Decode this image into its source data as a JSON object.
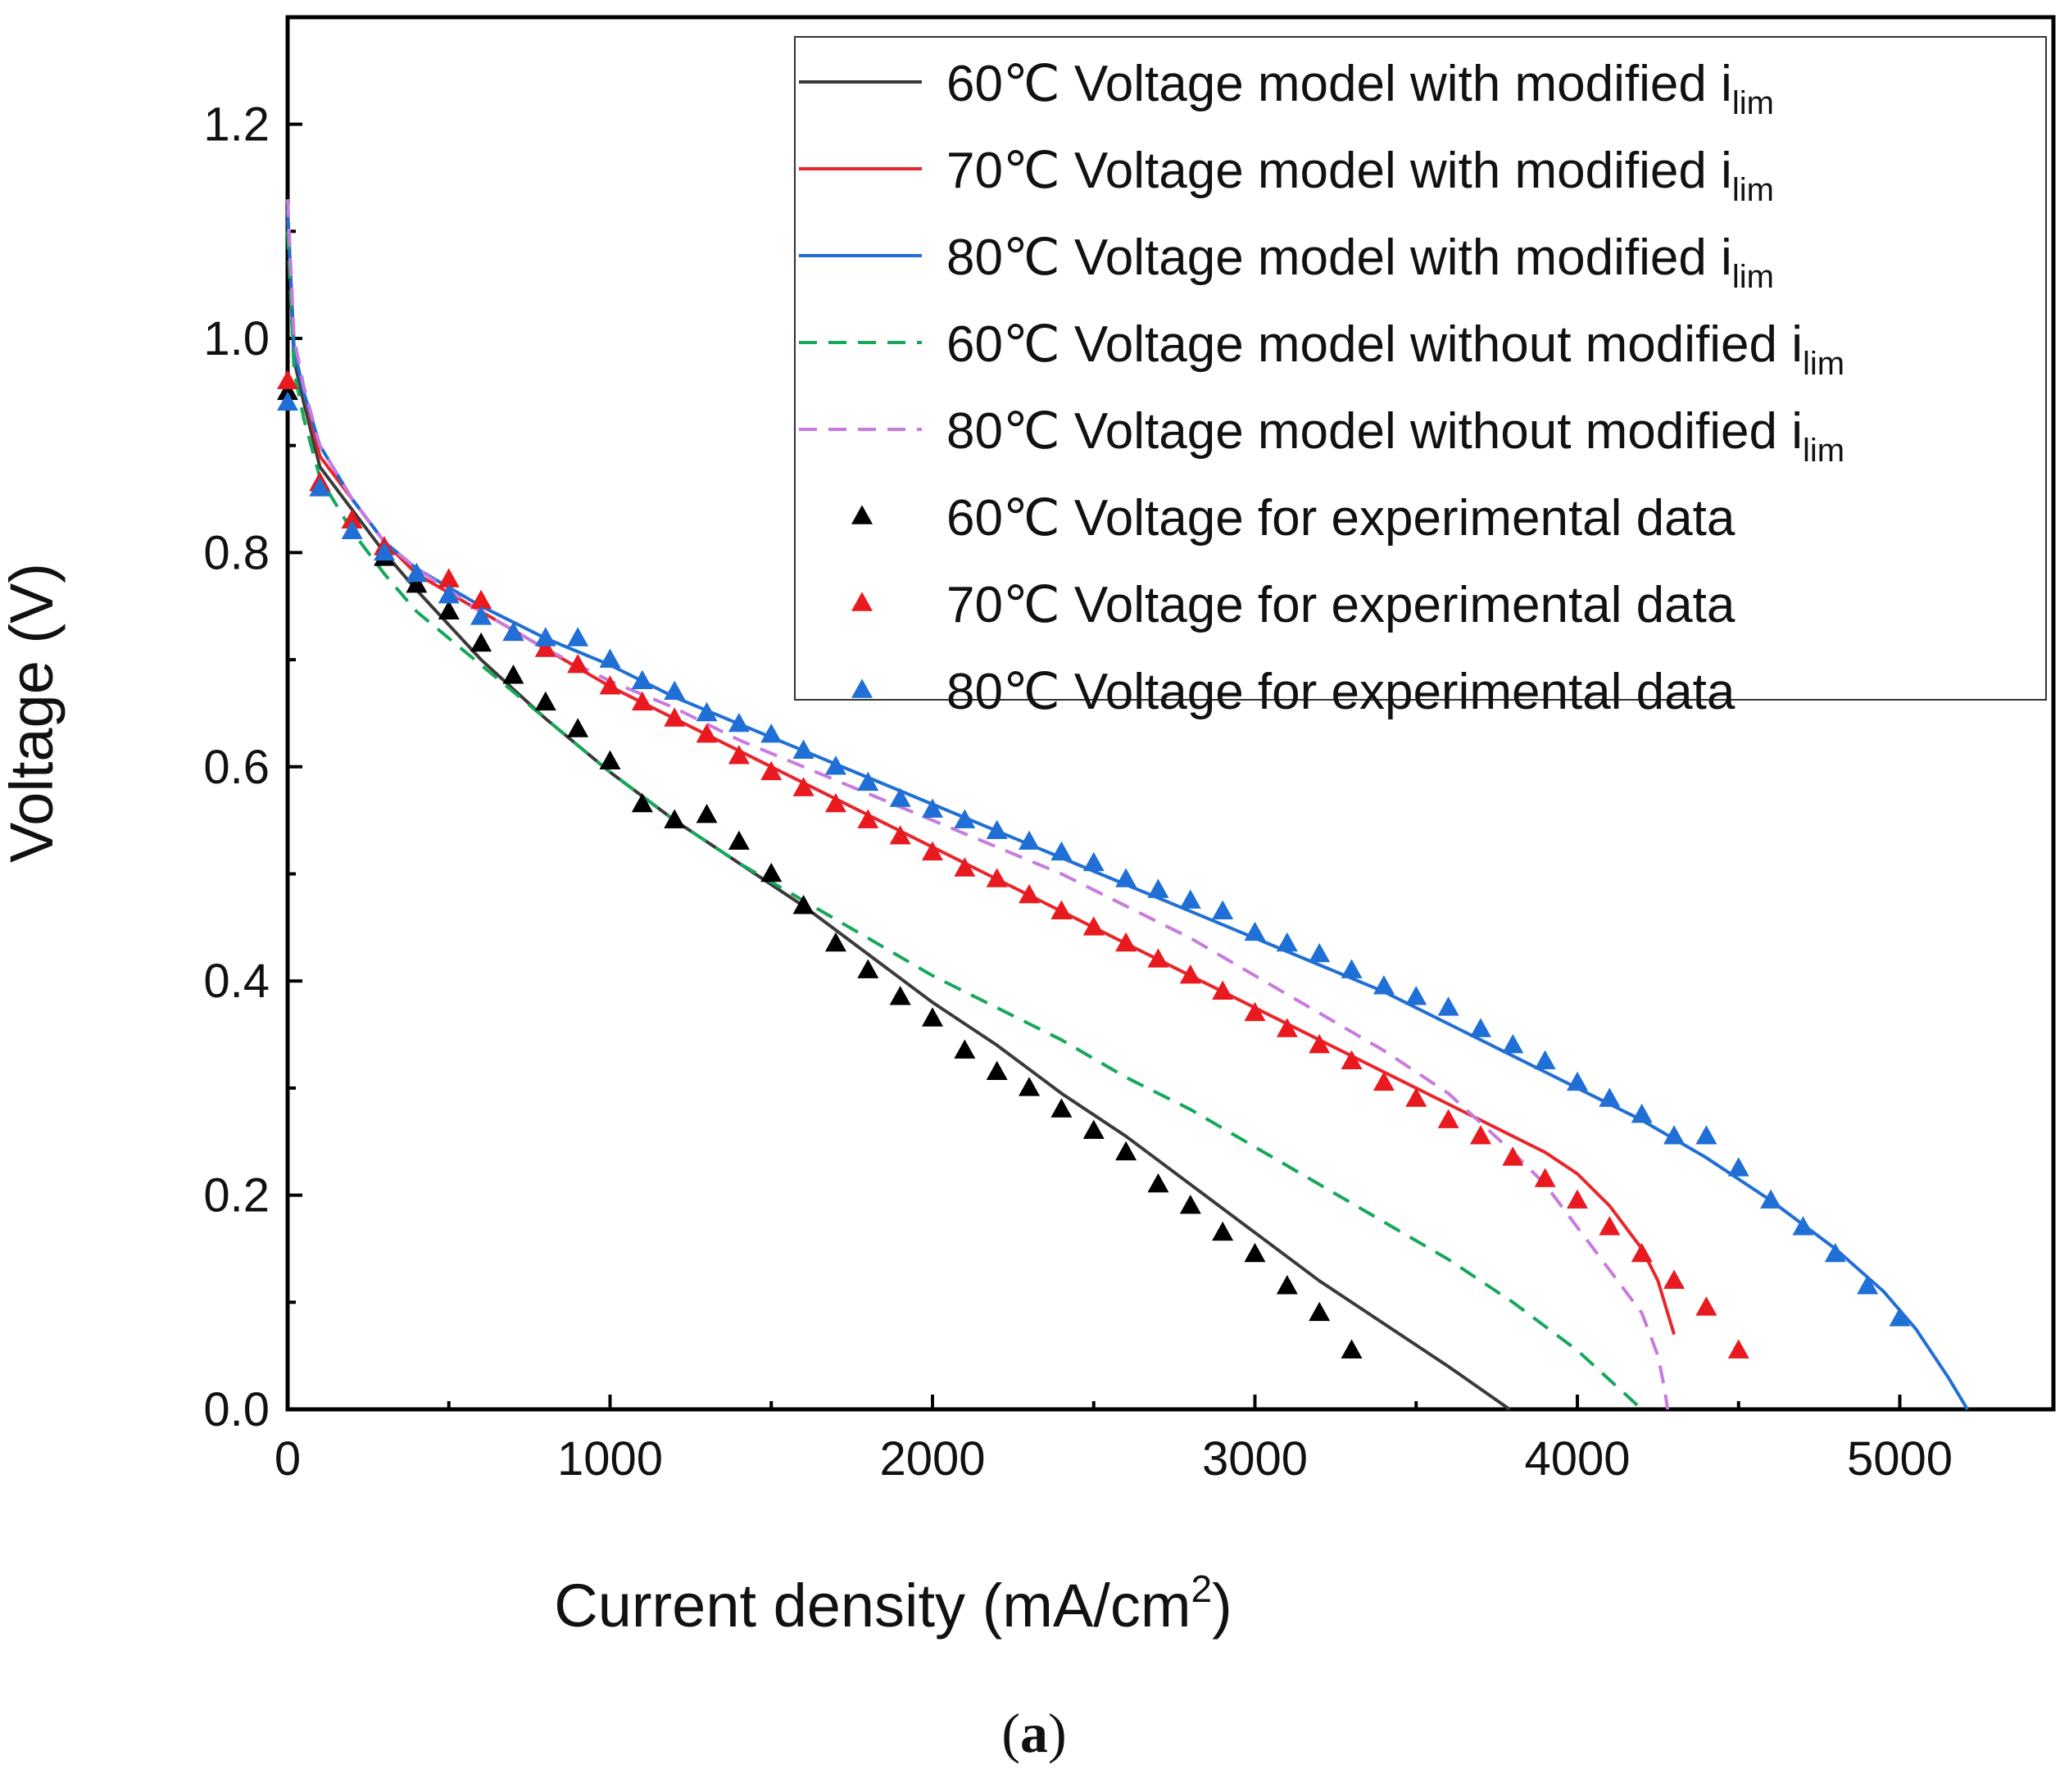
{
  "chart_data": {
    "type": "line",
    "caption": "a",
    "xlabel": "Current density (mA/cm",
    "xlabel_sup": "2",
    "xlabel_end": ")",
    "ylabel": "Voltage (V)",
    "xlim": [
      0,
      5500
    ],
    "ylim": [
      0,
      1.3
    ],
    "x_ticks": [
      0,
      1000,
      2000,
      3000,
      4000,
      5000
    ],
    "x_tick_labels": [
      "0",
      "1000",
      "2000",
      "3000",
      "4000",
      "5000"
    ],
    "y_ticks": [
      0,
      0.2,
      0.4,
      0.6,
      0.8,
      1.0,
      1.2
    ],
    "y_tick_labels": [
      "0.0",
      "0.2",
      "0.4",
      "0.6",
      "0.8",
      "1.0",
      "1.2"
    ],
    "legend_position": "top-right",
    "series": [
      {
        "name": "60℃ Voltage model with modified i",
        "subscript": "lim",
        "kind": "line",
        "dash": "solid",
        "color": "#3a3a3a",
        "x": [
          0,
          20,
          50,
          100,
          200,
          300,
          400,
          600,
          800,
          1000,
          1200,
          1400,
          1600,
          1800,
          2000,
          2200,
          2400,
          2600,
          2800,
          3000,
          3200,
          3400,
          3600,
          3790
        ],
        "y": [
          1.11,
          0.98,
          0.94,
          0.88,
          0.84,
          0.8,
          0.765,
          0.7,
          0.645,
          0.595,
          0.55,
          0.51,
          0.47,
          0.425,
          0.38,
          0.34,
          0.295,
          0.255,
          0.21,
          0.165,
          0.12,
          0.08,
          0.04,
          0.0
        ]
      },
      {
        "name": "70℃ Voltage model with modified i",
        "subscript": "lim",
        "kind": "line",
        "dash": "solid",
        "color": "#e8262b",
        "x": [
          0,
          20,
          50,
          100,
          200,
          300,
          400,
          600,
          800,
          1000,
          1200,
          1400,
          1600,
          1800,
          2000,
          2200,
          2400,
          2600,
          2800,
          3000,
          3200,
          3400,
          3600,
          3800,
          3900,
          4000,
          4100,
          4200,
          4250,
          4280,
          4300
        ],
        "y": [
          1.12,
          0.99,
          0.95,
          0.89,
          0.85,
          0.81,
          0.78,
          0.745,
          0.71,
          0.675,
          0.645,
          0.615,
          0.585,
          0.555,
          0.525,
          0.495,
          0.465,
          0.435,
          0.405,
          0.375,
          0.345,
          0.315,
          0.285,
          0.255,
          0.24,
          0.22,
          0.19,
          0.15,
          0.12,
          0.09,
          0.07
        ]
      },
      {
        "name": "80℃ Voltage model with modified i",
        "subscript": "lim",
        "kind": "line",
        "dash": "solid",
        "color": "#1f6fd6",
        "x": [
          0,
          20,
          50,
          100,
          200,
          300,
          400,
          600,
          800,
          1000,
          1200,
          1400,
          1600,
          1800,
          2000,
          2200,
          2400,
          2600,
          2800,
          3000,
          3200,
          3400,
          3600,
          3800,
          4000,
          4200,
          4400,
          4600,
          4800,
          4950,
          5050,
          5150,
          5210
        ],
        "y": [
          1.12,
          0.99,
          0.95,
          0.9,
          0.85,
          0.81,
          0.785,
          0.75,
          0.72,
          0.695,
          0.665,
          0.64,
          0.615,
          0.59,
          0.565,
          0.54,
          0.515,
          0.49,
          0.465,
          0.44,
          0.415,
          0.39,
          0.36,
          0.33,
          0.3,
          0.27,
          0.235,
          0.195,
          0.15,
          0.11,
          0.075,
          0.03,
          0.0
        ]
      },
      {
        "name": "60℃ Voltage model without modified i",
        "subscript": "lim",
        "kind": "line",
        "dash": "dashed",
        "color": "#16a85a",
        "x": [
          0,
          20,
          50,
          100,
          200,
          300,
          400,
          600,
          800,
          1000,
          1200,
          1400,
          1600,
          1800,
          2000,
          2200,
          2400,
          2600,
          2800,
          3000,
          3200,
          3400,
          3600,
          3800,
          4000,
          4200
        ],
        "y": [
          1.1,
          0.97,
          0.925,
          0.87,
          0.82,
          0.78,
          0.745,
          0.695,
          0.645,
          0.595,
          0.55,
          0.51,
          0.475,
          0.44,
          0.405,
          0.375,
          0.345,
          0.31,
          0.28,
          0.245,
          0.21,
          0.175,
          0.14,
          0.1,
          0.055,
          0.0
        ]
      },
      {
        "name": "80℃ Voltage model without modified i",
        "subscript": "lim",
        "kind": "line",
        "dash": "dashed",
        "color": "#c87ae0",
        "x": [
          0,
          20,
          50,
          100,
          200,
          300,
          400,
          600,
          800,
          1000,
          1200,
          1400,
          1600,
          1800,
          2000,
          2200,
          2400,
          2600,
          2800,
          3000,
          3200,
          3400,
          3600,
          3800,
          3900,
          4000,
          4100,
          4200,
          4250,
          4270,
          4280
        ],
        "y": [
          1.13,
          1.0,
          0.955,
          0.9,
          0.85,
          0.81,
          0.785,
          0.745,
          0.71,
          0.68,
          0.655,
          0.625,
          0.6,
          0.575,
          0.55,
          0.525,
          0.5,
          0.47,
          0.44,
          0.405,
          0.37,
          0.335,
          0.295,
          0.24,
          0.21,
          0.17,
          0.13,
          0.09,
          0.05,
          0.02,
          0.0
        ]
      },
      {
        "name": "60℃ Voltage for experimental data",
        "kind": "marker",
        "color": "#000000",
        "x": [
          0,
          100,
          200,
          300,
          400,
          500,
          600,
          700,
          800,
          900,
          1000,
          1100,
          1200,
          1300,
          1400,
          1500,
          1600,
          1700,
          1800,
          1900,
          2000,
          2100,
          2200,
          2300,
          2400,
          2500,
          2600,
          2700,
          2800,
          2900,
          3000,
          3100,
          3200,
          3300
        ],
        "y": [
          0.95,
          0.865,
          0.83,
          0.795,
          0.77,
          0.745,
          0.715,
          0.685,
          0.66,
          0.635,
          0.605,
          0.565,
          0.55,
          0.555,
          0.53,
          0.5,
          0.47,
          0.435,
          0.41,
          0.385,
          0.365,
          0.335,
          0.315,
          0.3,
          0.28,
          0.26,
          0.24,
          0.21,
          0.19,
          0.165,
          0.145,
          0.115,
          0.09,
          0.055
        ]
      },
      {
        "name": "70℃ Voltage for experimental data",
        "kind": "marker",
        "color": "#e8191f",
        "x": [
          0,
          100,
          200,
          300,
          400,
          500,
          600,
          700,
          800,
          900,
          1000,
          1100,
          1200,
          1300,
          1400,
          1500,
          1600,
          1700,
          1800,
          1900,
          2000,
          2100,
          2200,
          2300,
          2400,
          2500,
          2600,
          2700,
          2800,
          2900,
          3000,
          3100,
          3200,
          3300,
          3400,
          3500,
          3600,
          3700,
          3800,
          3900,
          4000,
          4100,
          4200,
          4300,
          4400,
          4500
        ],
        "y": [
          0.96,
          0.865,
          0.83,
          0.805,
          0.78,
          0.775,
          0.755,
          0.725,
          0.71,
          0.695,
          0.675,
          0.66,
          0.645,
          0.63,
          0.61,
          0.595,
          0.58,
          0.565,
          0.55,
          0.535,
          0.52,
          0.505,
          0.495,
          0.48,
          0.465,
          0.45,
          0.435,
          0.42,
          0.405,
          0.39,
          0.37,
          0.355,
          0.34,
          0.325,
          0.305,
          0.29,
          0.27,
          0.255,
          0.235,
          0.215,
          0.195,
          0.17,
          0.145,
          0.12,
          0.095,
          0.055
        ]
      },
      {
        "name": "80℃ Voltage for experimental data",
        "kind": "marker",
        "color": "#1f6fd6",
        "x": [
          0,
          100,
          200,
          300,
          400,
          500,
          600,
          700,
          800,
          900,
          1000,
          1100,
          1200,
          1300,
          1400,
          1500,
          1600,
          1700,
          1800,
          1900,
          2000,
          2100,
          2200,
          2300,
          2400,
          2500,
          2600,
          2700,
          2800,
          2900,
          3000,
          3100,
          3200,
          3300,
          3400,
          3500,
          3600,
          3700,
          3800,
          3900,
          4000,
          4100,
          4200,
          4300,
          4400,
          4500,
          4600,
          4700,
          4800,
          4900,
          5000
        ],
        "y": [
          0.94,
          0.86,
          0.82,
          0.8,
          0.78,
          0.76,
          0.74,
          0.725,
          0.72,
          0.72,
          0.7,
          0.68,
          0.67,
          0.65,
          0.64,
          0.63,
          0.615,
          0.6,
          0.585,
          0.57,
          0.56,
          0.55,
          0.54,
          0.53,
          0.52,
          0.51,
          0.495,
          0.485,
          0.475,
          0.465,
          0.445,
          0.435,
          0.425,
          0.41,
          0.395,
          0.385,
          0.375,
          0.355,
          0.34,
          0.325,
          0.305,
          0.29,
          0.275,
          0.255,
          0.255,
          0.225,
          0.195,
          0.17,
          0.145,
          0.115,
          0.085
        ]
      }
    ]
  }
}
